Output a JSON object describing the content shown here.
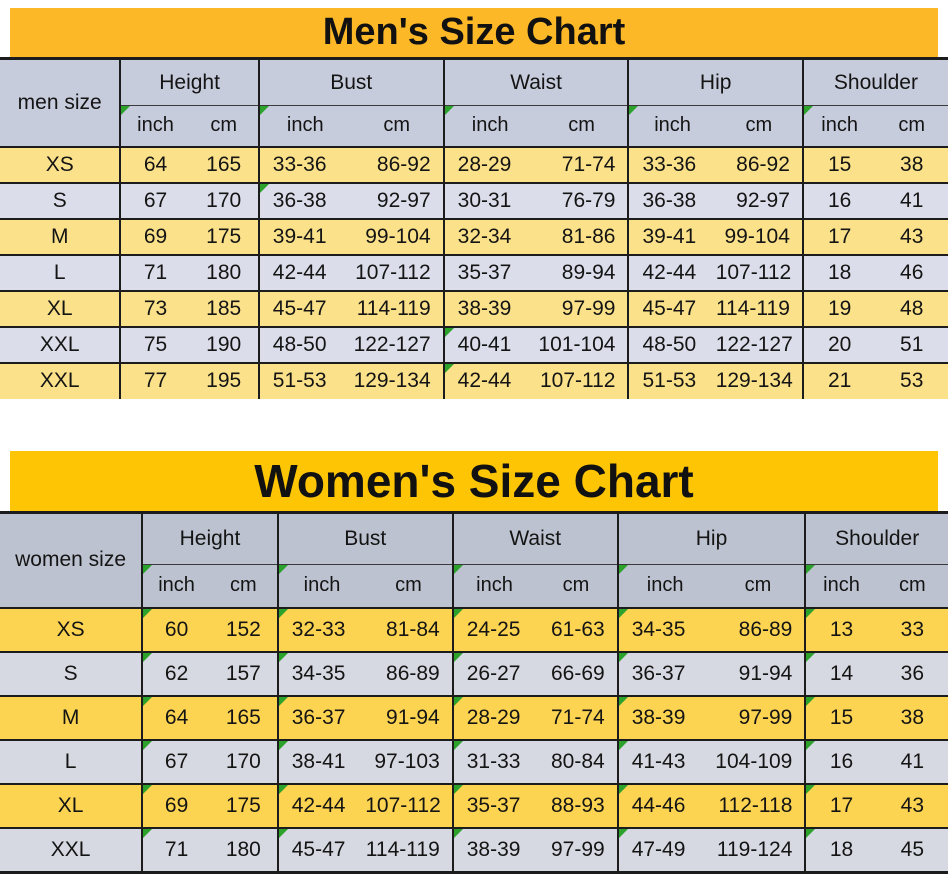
{
  "colors": {
    "men_banner": "#FCB827",
    "women_banner": "#FDC504",
    "men_header_gray": "#C7CCDC",
    "women_header_gray": "#BCC2CF",
    "men_row_yellow": "#FBE28A",
    "men_row_gray": "#DBDEEA",
    "women_row_yellow": "#FCD451",
    "women_row_gray": "#D6D9E1",
    "border": "#1C1C1C",
    "marker_green": "#2CA22C",
    "text": "#141414"
  },
  "icons": {
    "cell_flag": "green-corner-triangle-icon"
  },
  "chart_data": [
    {
      "type": "table",
      "title": "Men's Size Chart",
      "corner_label": "men size",
      "groups": [
        "Height",
        "Bust",
        "Waist",
        "Hip",
        "Shoulder"
      ],
      "units": [
        "inch",
        "cm"
      ],
      "columns": [
        "size",
        "Height inch",
        "Height cm",
        "Bust inch",
        "Bust cm",
        "Waist inch",
        "Waist cm",
        "Hip inch",
        "Hip cm",
        "Shoulder inch",
        "Shoulder cm"
      ],
      "rows": [
        [
          "XS",
          "64",
          "165",
          "33-36",
          "86-92",
          "28-29",
          "71-74",
          "33-36",
          "86-92",
          "15",
          "38"
        ],
        [
          "S",
          "67",
          "170",
          "36-38",
          "92-97",
          "30-31",
          "76-79",
          "36-38",
          "92-97",
          "16",
          "41"
        ],
        [
          "M",
          "69",
          "175",
          "39-41",
          "99-104",
          "32-34",
          "81-86",
          "39-41",
          "99-104",
          "17",
          "43"
        ],
        [
          "L",
          "71",
          "180",
          "42-44",
          "107-112",
          "35-37",
          "89-94",
          "42-44",
          "107-112",
          "18",
          "46"
        ],
        [
          "XL",
          "73",
          "185",
          "45-47",
          "114-119",
          "38-39",
          "97-99",
          "45-47",
          "114-119",
          "19",
          "48"
        ],
        [
          "XXL",
          "75",
          "190",
          "48-50",
          "122-127",
          "40-41",
          "101-104",
          "48-50",
          "122-127",
          "20",
          "51"
        ],
        [
          "XXL",
          "77",
          "195",
          "51-53",
          "129-134",
          "42-44",
          "107-112",
          "51-53",
          "129-134",
          "21",
          "53"
        ]
      ]
    },
    {
      "type": "table",
      "title": "Women's Size Chart",
      "corner_label": "women size",
      "groups": [
        "Height",
        "Bust",
        "Waist",
        "Hip",
        "Shoulder"
      ],
      "units": [
        "inch",
        "cm"
      ],
      "columns": [
        "size",
        "Height inch",
        "Height cm",
        "Bust inch",
        "Bust cm",
        "Waist inch",
        "Waist cm",
        "Hip inch",
        "Hip cm",
        "Shoulder inch",
        "Shoulder cm"
      ],
      "rows": [
        [
          "XS",
          "60",
          "152",
          "32-33",
          "81-84",
          "24-25",
          "61-63",
          "34-35",
          "86-89",
          "13",
          "33"
        ],
        [
          "S",
          "62",
          "157",
          "34-35",
          "86-89",
          "26-27",
          "66-69",
          "36-37",
          "91-94",
          "14",
          "36"
        ],
        [
          "M",
          "64",
          "165",
          "36-37",
          "91-94",
          "28-29",
          "71-74",
          "38-39",
          "97-99",
          "15",
          "38"
        ],
        [
          "L",
          "67",
          "170",
          "38-41",
          "97-103",
          "31-33",
          "80-84",
          "41-43",
          "104-109",
          "16",
          "41"
        ],
        [
          "XL",
          "69",
          "175",
          "42-44",
          "107-112",
          "35-37",
          "88-93",
          "44-46",
          "112-118",
          "17",
          "43"
        ],
        [
          "XXL",
          "71",
          "180",
          "45-47",
          "114-119",
          "38-39",
          "97-99",
          "47-49",
          "119-124",
          "18",
          "45"
        ]
      ]
    }
  ]
}
